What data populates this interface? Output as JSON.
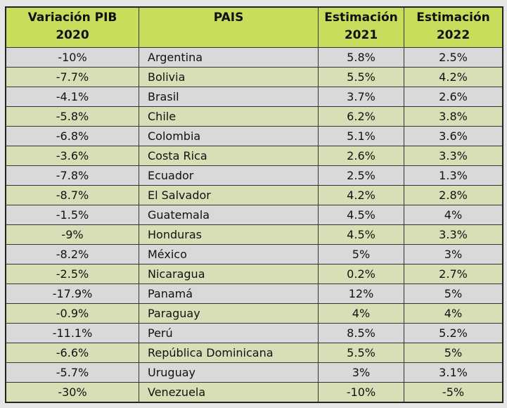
{
  "headers": {
    "var2020_line1": "Variación PIB",
    "var2020_line2": "2020",
    "pais": "PAIS",
    "est2021_line1": "Estimación",
    "est2021_line2": "2021",
    "est2022_line1": "Estimación",
    "est2022_line2": "2022"
  },
  "rows": [
    {
      "var": "-10%",
      "pais": "Argentina",
      "e21": "5.8%",
      "e22": "2.5%"
    },
    {
      "var": "-7.7%",
      "pais": "Bolivia",
      "e21": "5.5%",
      "e22": "4.2%"
    },
    {
      "var": "-4.1%",
      "pais": "Brasil",
      "e21": "3.7%",
      "e22": "2.6%"
    },
    {
      "var": "-5.8%",
      "pais": "Chile",
      "e21": "6.2%",
      "e22": "3.8%"
    },
    {
      "var": "-6.8%",
      "pais": "Colombia",
      "e21": "5.1%",
      "e22": "3.6%"
    },
    {
      "var": "-3.6%",
      "pais": "Costa Rica",
      "e21": "2.6%",
      "e22": "3.3%"
    },
    {
      "var": "-7.8%",
      "pais": "Ecuador",
      "e21": "2.5%",
      "e22": "1.3%"
    },
    {
      "var": "-8.7%",
      "pais": "El Salvador",
      "e21": "4.2%",
      "e22": "2.8%"
    },
    {
      "var": "-1.5%",
      "pais": "Guatemala",
      "e21": "4.5%",
      "e22": "4%"
    },
    {
      "var": "-9%",
      "pais": "Honduras",
      "e21": "4.5%",
      "e22": "3.3%"
    },
    {
      "var": "-8.2%",
      "pais": "México",
      "e21": "5%",
      "e22": "3%"
    },
    {
      "var": "-2.5%",
      "pais": "Nicaragua",
      "e21": "0.2%",
      "e22": "2.7%"
    },
    {
      "var": "-17.9%",
      "pais": "Panamá",
      "e21": "12%",
      "e22": "5%"
    },
    {
      "var": "-0.9%",
      "pais": "Paraguay",
      "e21": "4%",
      "e22": "4%"
    },
    {
      "var": "-11.1%",
      "pais": "Perú",
      "e21": "8.5%",
      "e22": "5.2%"
    },
    {
      "var": "-6.6%",
      "pais": "República Dominicana",
      "e21": "5.5%",
      "e22": "5%"
    },
    {
      "var": "-5.7%",
      "pais": "Uruguay",
      "e21": "3%",
      "e22": "3.1%"
    },
    {
      "var": "-30%",
      "pais": "Venezuela",
      "e21": "-10%",
      "e22": "-5%"
    }
  ]
}
